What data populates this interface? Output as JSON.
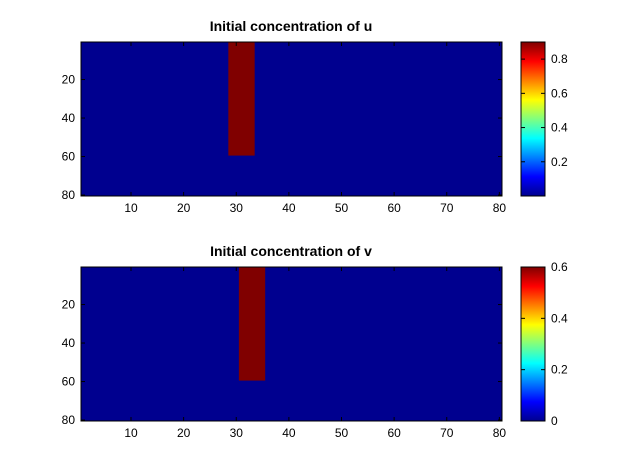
{
  "chart_data": [
    {
      "type": "heatmap",
      "title": "Initial concentration of u",
      "xlabel": "",
      "ylabel": "",
      "xlim": [
        0.5,
        80.5
      ],
      "ylim": [
        0.5,
        80.5
      ],
      "y_reversed": true,
      "x_ticks": [
        10,
        20,
        30,
        40,
        50,
        60,
        70,
        80
      ],
      "y_ticks": [
        20,
        40,
        60,
        80
      ],
      "background_value": 0,
      "regions": [
        {
          "x": [
            29,
            33
          ],
          "y": [
            1,
            59
          ],
          "value": 0.9
        }
      ],
      "colorbar": {
        "colormap": "jet",
        "range": [
          0,
          0.9
        ],
        "ticks": [
          0.2,
          0.4,
          0.6,
          0.8
        ],
        "tick_labels": [
          "0.2",
          "0.4",
          "0.6",
          "0.8"
        ]
      }
    },
    {
      "type": "heatmap",
      "title": "Initial concentration of v",
      "xlabel": "",
      "ylabel": "",
      "xlim": [
        0.5,
        80.5
      ],
      "ylim": [
        0.5,
        80.5
      ],
      "y_reversed": true,
      "x_ticks": [
        10,
        20,
        30,
        40,
        50,
        60,
        70,
        80
      ],
      "y_ticks": [
        20,
        40,
        60,
        80
      ],
      "background_value": 0,
      "regions": [
        {
          "x": [
            31,
            35
          ],
          "y": [
            1,
            59
          ],
          "value": 0.6
        }
      ],
      "colorbar": {
        "colormap": "jet",
        "range": [
          0,
          0.6
        ],
        "ticks": [
          0,
          0.2,
          0.4,
          0.6
        ],
        "tick_labels": [
          "0",
          "0.2",
          "0.4",
          "0.6"
        ]
      }
    }
  ],
  "colors": {
    "jet_min": "#00008f",
    "jet_max": "#800000"
  }
}
